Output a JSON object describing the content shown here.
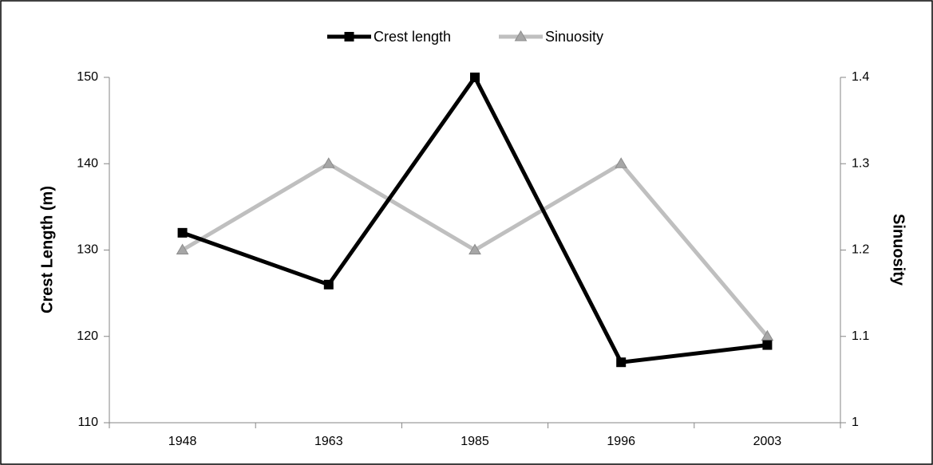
{
  "chart_data": {
    "type": "line",
    "categories": [
      "1948",
      "1963",
      "1985",
      "1996",
      "2003"
    ],
    "series": [
      {
        "name": "Crest length",
        "color": "#000000",
        "marker": "square",
        "values": [
          132,
          126,
          150,
          117,
          119
        ]
      },
      {
        "name": "Sinuosity",
        "color": "#bfbfbf",
        "marker": "triangle",
        "axis": "y2",
        "values": [
          1.2,
          1.3,
          1.2,
          1.3,
          1.1
        ]
      }
    ],
    "ylabel": "Crest Length (m)",
    "y2label": "Sinuosity",
    "ylim": [
      110,
      150
    ],
    "yticks": [
      110,
      120,
      130,
      140,
      150
    ],
    "y2lim": [
      1,
      1.4
    ],
    "y2ticks": [
      1,
      1.1,
      1.2,
      1.3,
      1.4
    ],
    "grid": false,
    "legend": "top"
  }
}
